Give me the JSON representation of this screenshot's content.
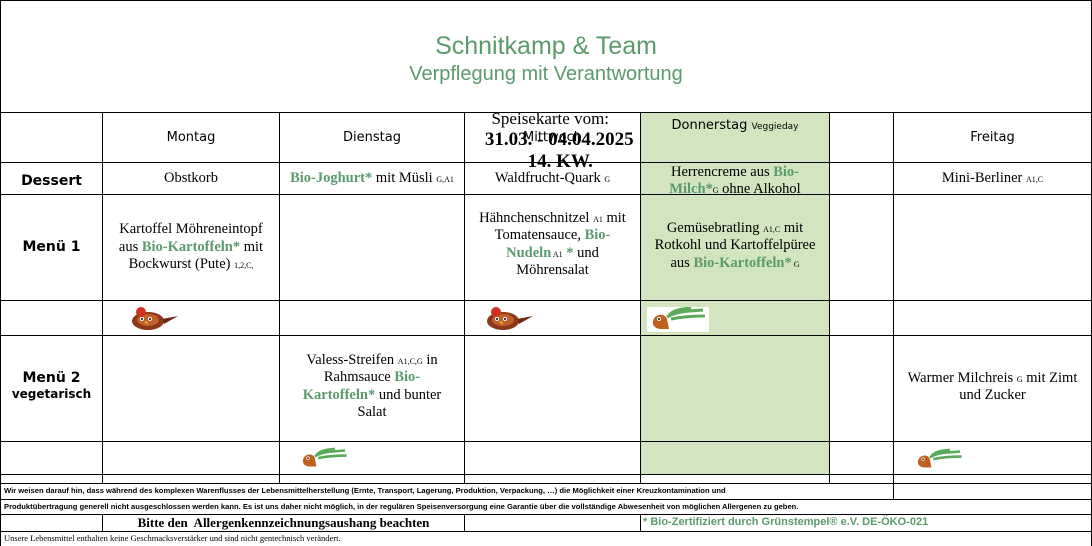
{
  "header": {
    "company": "Schnitkamp & Team",
    "slogan": "Verpflegung mit Verantwortung",
    "menu_label": "Speisekarte vom:",
    "date_range": "31.03. - 04.04.2025",
    "week": "14. KW."
  },
  "days": [
    {
      "name": "Montag",
      "tag": ""
    },
    {
      "name": "Dienstag",
      "tag": ""
    },
    {
      "name": "Mittwoch",
      "tag": ""
    },
    {
      "name": "Donnerstag",
      "tag": "Veggieday"
    },
    {
      "name": "Freitag",
      "tag": ""
    }
  ],
  "rows": {
    "dessert": "Dessert",
    "menu1": "Menü 1",
    "menu2_line1": "Menü 2",
    "menu2_line2": "vegetarisch"
  },
  "dessert": {
    "mon": {
      "a": "Obstkorb"
    },
    "tue": {
      "a": "Bio-Joghurt*",
      "b": " mit Müsli ",
      "c": "G,A1"
    },
    "wed": {
      "a": "Waldfrucht-Quark ",
      "b": "G"
    },
    "thu": {
      "a": "Herrencreme aus ",
      "b": "Bio-",
      "c": "Milch*",
      "d": "G",
      "e": " ohne Alkohol"
    },
    "fri": {
      "a": "Mini-Berliner ",
      "b": "A1,C"
    }
  },
  "menu1": {
    "mon": {
      "a": "Kartoffel Möhreneintopf",
      "b": "aus ",
      "c": "Bio-Kartoffeln*",
      "d": " mit",
      "e": "Bockwurst (Pute) ",
      "f": "1,2,C,"
    },
    "wed": {
      "a": "Hähnchenschnitzel ",
      "b": "A1",
      "c": " mit",
      "d": "Tomatensauce, ",
      "e": "Bio-",
      "f": "Nudeln",
      "g": " A1",
      "h": " *",
      "i": " und",
      "j": "Möhrensalat"
    },
    "thu": {
      "a": "Gemüsebratling ",
      "b": "A1,C",
      "c": " mit",
      "d": "Rotkohl und Kartoffelpüree",
      "e": "aus ",
      "f": "Bio-Kartoffeln*",
      "g": " G"
    }
  },
  "menu2": {
    "tue": {
      "a": "Valess-Streifen ",
      "b": "A1,C,G",
      "c": " in",
      "d": "Rahmsauce ",
      "e": "Bio-",
      "f": "Kartoffeln*",
      "g": " und bunter",
      "h": "Salat"
    },
    "fri": {
      "a": "Warmer Milchreis ",
      "b": "G",
      "c": " mit Zimt",
      "d": "und Zucker"
    }
  },
  "icons": {
    "meat": "chicken-icon",
    "veggie": "carrot-icon"
  },
  "footer": {
    "line1": "Wir weisen darauf hin, dass während des komplexen Warenflusses der Lebensmittelherstellung (Ernte, Transport, Lagerung, Produktion, Verpackung, …) die Möglichkeit einer Kreuzkontamination und",
    "line2": "Produktübertragung generell nicht ausgeschlossen werden kann. Es ist uns daher nicht möglich, in der regulären Speisenversorgung eine Garantie über die vollständige Abwesenheit von möglichen Allergenen zu geben.",
    "allergen_notice": "Bitte den  Allergenkennzeichnungsaushang beachten",
    "bio_cert": "* Bio-Zertifiziert durch Grünstempel® e.V. DE-ÖKO-021",
    "line3": "Unsere Lebensmittel enthalten keine Geschmacksverstärker und sind nicht gentechnisch verändert."
  },
  "colors": {
    "accent_green": "#5a9a6c",
    "veggieday_bg": "#d2e4c0"
  }
}
